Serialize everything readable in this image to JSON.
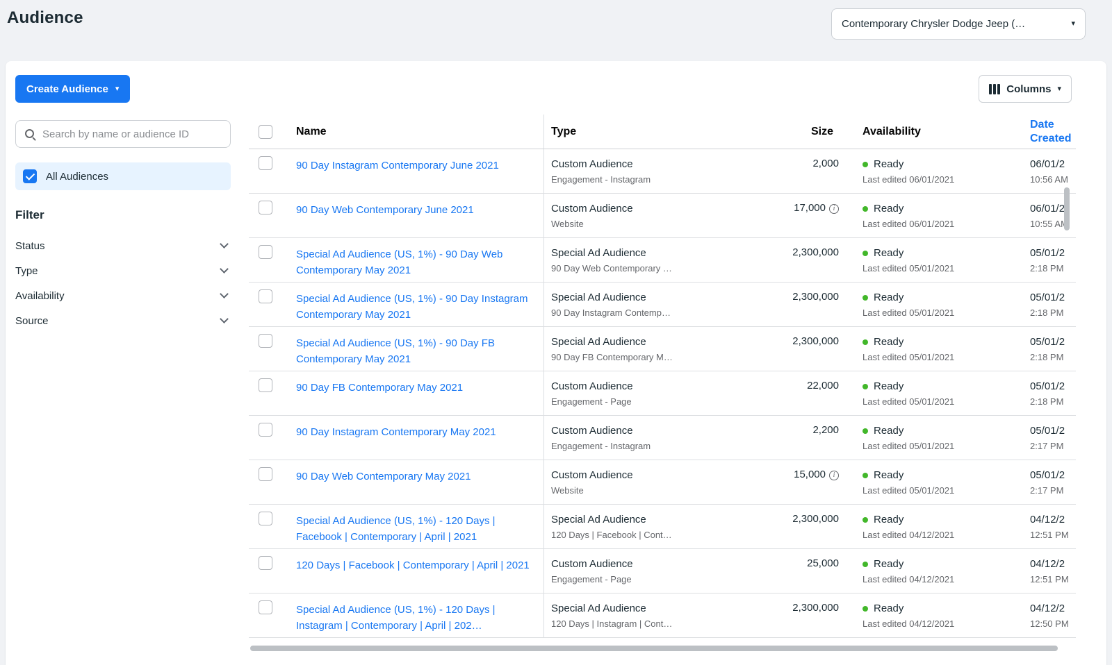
{
  "colors": {
    "accent": "#1877f2",
    "link": "#1877f2",
    "status-ready": "#42b72a"
  },
  "icons": {
    "caret_down": "▾",
    "info": "i"
  },
  "page": {
    "title": "Audience",
    "account_selector_value": "Contemporary Chrysler Dodge Jeep (…"
  },
  "toolbar": {
    "create_audience": "Create Audience",
    "columns": "Columns"
  },
  "sidebar": {
    "search_placeholder": "Search by name or audience ID",
    "all_audiences": "All Audiences",
    "filter_title": "Filter",
    "filters": [
      {
        "label": "Status"
      },
      {
        "label": "Type"
      },
      {
        "label": "Availability"
      },
      {
        "label": "Source"
      }
    ]
  },
  "table": {
    "headers": {
      "name": "Name",
      "type": "Type",
      "size": "Size",
      "availability": "Availability",
      "date_created": "Date Created"
    },
    "rows": [
      {
        "name": "90 Day Instagram Contemporary June 2021",
        "type": "Custom Audience",
        "type_detail": "Engagement - Instagram",
        "size": "2,000",
        "availability": "Ready",
        "availability_detail": "Last edited 06/01/2021",
        "date": "06/01/2",
        "time": "10:56 AM"
      },
      {
        "name": "90 Day Web Contemporary June 2021",
        "type": "Custom Audience",
        "type_detail": "Website",
        "size": "17,000",
        "availability": "Ready",
        "availability_detail": "Last edited 06/01/2021",
        "date": "06/01/2",
        "time": "10:55 AM"
      },
      {
        "name": "Special Ad Audience (US, 1%) - 90 Day Web Contemporary May 2021",
        "type": "Special Ad Audience",
        "type_detail": "90 Day Web Contemporary …",
        "size": "2,300,000",
        "availability": "Ready",
        "availability_detail": "Last edited 05/01/2021",
        "date": "05/01/2",
        "time": "2:18 PM"
      },
      {
        "name": "Special Ad Audience (US, 1%) - 90 Day Instagram Contemporary May 2021",
        "type": "Special Ad Audience",
        "type_detail": "90 Day Instagram Contemp…",
        "size": "2,300,000",
        "availability": "Ready",
        "availability_detail": "Last edited 05/01/2021",
        "date": "05/01/2",
        "time": "2:18 PM"
      },
      {
        "name": "Special Ad Audience (US, 1%) - 90 Day FB Contemporary May 2021",
        "type": "Special Ad Audience",
        "type_detail": "90 Day FB Contemporary M…",
        "size": "2,300,000",
        "availability": "Ready",
        "availability_detail": "Last edited 05/01/2021",
        "date": "05/01/2",
        "time": "2:18 PM"
      },
      {
        "name": "90 Day FB Contemporary May 2021",
        "type": "Custom Audience",
        "type_detail": "Engagement - Page",
        "size": "22,000",
        "availability": "Ready",
        "availability_detail": "Last edited 05/01/2021",
        "date": "05/01/2",
        "time": "2:18 PM"
      },
      {
        "name": "90 Day Instagram Contemporary May 2021",
        "type": "Custom Audience",
        "type_detail": "Engagement - Instagram",
        "size": "2,200",
        "availability": "Ready",
        "availability_detail": "Last edited 05/01/2021",
        "date": "05/01/2",
        "time": "2:17 PM"
      },
      {
        "name": "90 Day Web Contemporary May 2021",
        "type": "Custom Audience",
        "type_detail": "Website",
        "size": "15,000",
        "availability": "Ready",
        "availability_detail": "Last edited 05/01/2021",
        "date": "05/01/2",
        "time": "2:17 PM"
      },
      {
        "name": "Special Ad Audience (US, 1%) - 120 Days | Facebook | Contemporary | April | 2021",
        "type": "Special Ad Audience",
        "type_detail": "120 Days | Facebook | Cont…",
        "size": "2,300,000",
        "availability": "Ready",
        "availability_detail": "Last edited 04/12/2021",
        "date": "04/12/2",
        "time": "12:51 PM"
      },
      {
        "name": "120 Days | Facebook | Contemporary | April | 2021",
        "type": "Custom Audience",
        "type_detail": "Engagement - Page",
        "size": "25,000",
        "availability": "Ready",
        "availability_detail": "Last edited 04/12/2021",
        "date": "04/12/2",
        "time": "12:51 PM"
      },
      {
        "name": "Special Ad Audience (US, 1%) - 120 Days | Instagram | Contemporary | April | 202…",
        "type": "Special Ad Audience",
        "type_detail": "120 Days | Instagram | Cont…",
        "size": "2,300,000",
        "availability": "Ready",
        "availability_detail": "Last edited 04/12/2021",
        "date": "04/12/2",
        "time": "12:50 PM"
      }
    ]
  }
}
